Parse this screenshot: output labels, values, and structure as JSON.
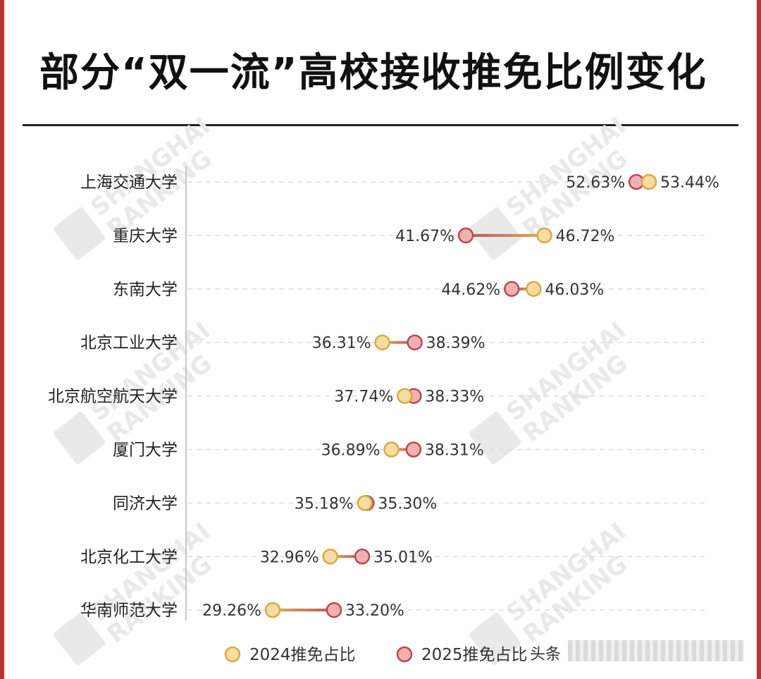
{
  "title": "部分“双一流”高校接收推免比例变化",
  "legend": {
    "label_2024": "2024推免占比",
    "label_2025": "2025推免占比"
  },
  "colors": {
    "c2024_fill": "#f6dca0",
    "c2024_stroke": "#d7aa48",
    "c2025_fill": "#f2b0b2",
    "c2025_stroke": "#b74a50",
    "watermark": "#e9e9e9"
  },
  "watermark": {
    "line1": "SHANGHAI",
    "line2": "RANKING"
  },
  "footer_text": "头条",
  "chart_data": {
    "type": "dumbbell",
    "categories": [
      "上海交通大学",
      "重庆大学",
      "东南大学",
      "北京工业大学",
      "北京航空航天大学",
      "厦门大学",
      "同济大学",
      "北京化工大学",
      "华南师范大学"
    ],
    "series": [
      {
        "name": "2024推免占比",
        "values": [
          53.44,
          46.72,
          46.03,
          36.31,
          37.74,
          36.89,
          35.18,
          32.96,
          29.26
        ]
      },
      {
        "name": "2025推免占比",
        "values": [
          52.63,
          41.67,
          44.62,
          38.39,
          38.33,
          38.31,
          35.3,
          35.01,
          33.2
        ]
      }
    ],
    "value_labels_2024": [
      "53.44%",
      "46.72%",
      "46.03%",
      "36.31%",
      "37.74%",
      "36.89%",
      "35.18%",
      "32.96%",
      "29.26%"
    ],
    "value_labels_2025": [
      "52.63%",
      "41.67%",
      "44.62%",
      "38.39%",
      "38.33%",
      "38.31%",
      "35.30%",
      "35.01%",
      "33.20%"
    ],
    "grid": true,
    "legend_position": "bottom"
  }
}
